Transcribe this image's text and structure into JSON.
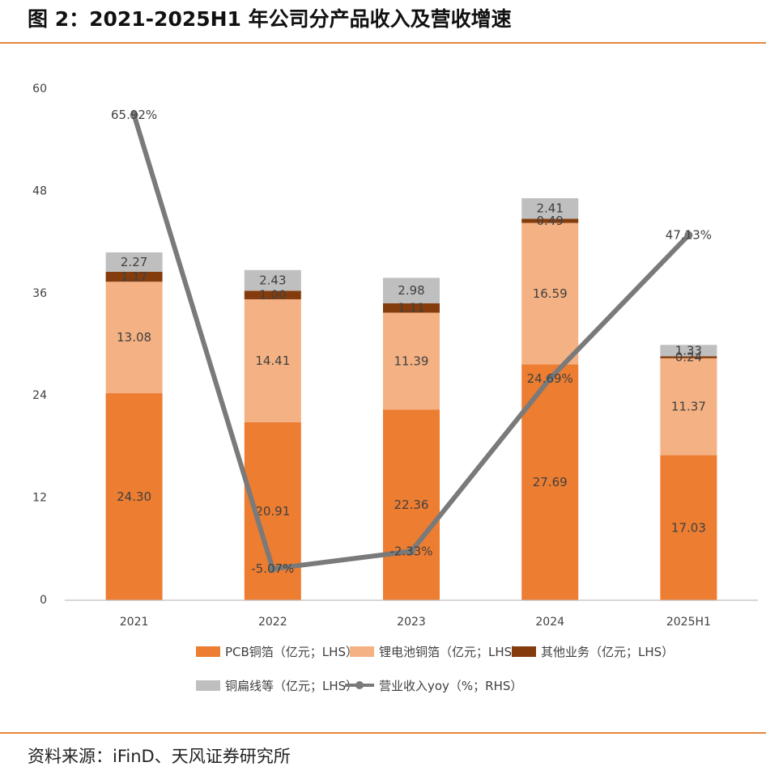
{
  "header": {
    "title": "图 2：2021-2025H1 年公司分产品收入及营收增速"
  },
  "footer": {
    "source": "资料来源：iFinD、天风证券研究所"
  },
  "colors": {
    "pcb": "#ed7d31",
    "battery": "#f4b183",
    "other": "#843c0c",
    "flat": "#bfbfbf",
    "yoy": "#7a7a7a",
    "rule": "#e8863a"
  },
  "chart_data": {
    "type": "bar",
    "stacked": true,
    "categories": [
      "2021",
      "2022",
      "2023",
      "2024",
      "2025H1"
    ],
    "yticks_left": [
      "0",
      "12",
      "24",
      "36",
      "48",
      "60"
    ],
    "ylim_left": [
      0,
      60
    ],
    "ylim_right": [
      -10,
      70
    ],
    "series": [
      {
        "name": "PCB铜箔（亿元；LHS）",
        "type": "bar",
        "axis": "left",
        "values": [
          24.3,
          20.91,
          22.36,
          27.69,
          17.03
        ],
        "labels": [
          "24.30",
          "20.91",
          "22.36",
          "27.69",
          "17.03"
        ]
      },
      {
        "name": "锂电池铜箔（亿元；LHS）",
        "type": "bar",
        "axis": "left",
        "values": [
          13.08,
          14.41,
          11.39,
          16.59,
          11.37
        ],
        "labels": [
          "13.08",
          "14.41",
          "11.39",
          "16.59",
          "11.37"
        ]
      },
      {
        "name": "其他业务（亿元；LHS）",
        "type": "bar",
        "axis": "left",
        "values": [
          1.17,
          1.0,
          1.11,
          0.49,
          0.24
        ],
        "labels": [
          "1.17",
          "1.00",
          "1.11",
          "0.49",
          "0.24"
        ]
      },
      {
        "name": "铜扁线等（亿元；LHS）",
        "type": "bar",
        "axis": "left",
        "values": [
          2.27,
          2.43,
          2.98,
          2.41,
          1.33
        ],
        "labels": [
          "2.27",
          "2.43",
          "2.98",
          "2.41",
          "1.33"
        ]
      },
      {
        "name": "营业收入yoy（%；RHS）",
        "type": "line",
        "axis": "right",
        "values": [
          65.92,
          -5.07,
          -2.33,
          24.69,
          47.13
        ],
        "labels": [
          "65.92%",
          "-5.07%",
          "-2.33%",
          "24.69%",
          "47.13%"
        ]
      }
    ],
    "legend_position": "bottom",
    "grid": false
  }
}
